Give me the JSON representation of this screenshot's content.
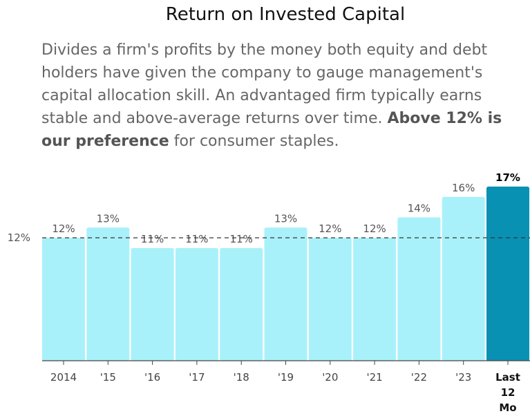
{
  "title": "Return on Invested Capital",
  "description": {
    "part1": "Divides a firm's profits by the money both equity and debt holders have given the company to gauge management's capital allocation skill. An advantaged firm typically earns stable and above-average returns over time.",
    "emphasis": "Above 12% is our preference",
    "part2": "for consumer staples."
  },
  "colors": {
    "bar": "#a9f1fa",
    "highlight": "#0891b2",
    "reference": "#333333"
  },
  "chart_data": {
    "type": "bar",
    "categories": [
      "2014",
      "'15",
      "'16",
      "'17",
      "'18",
      "'19",
      "'20",
      "'21",
      "'22",
      "'23",
      "Last 12 Mo"
    ],
    "values": [
      12,
      13,
      11,
      11,
      11,
      13,
      12,
      12,
      14,
      16,
      17
    ],
    "value_labels": [
      "12%",
      "13%",
      "11%",
      "11%",
      "11%",
      "13%",
      "12%",
      "12%",
      "14%",
      "16%",
      "17%"
    ],
    "highlight_index": 10,
    "reference_line": {
      "value": 12,
      "label": "12%"
    },
    "ylim": [
      0,
      17
    ],
    "grid": false
  }
}
